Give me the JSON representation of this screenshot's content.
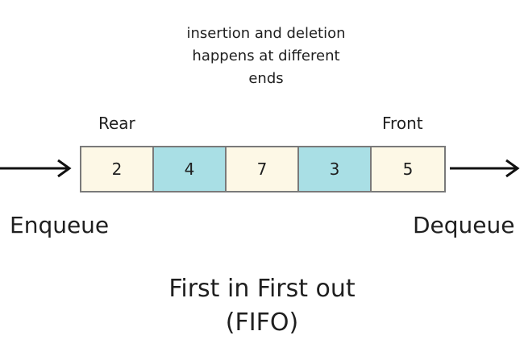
{
  "note": "insertion and deletion\nhappens at different\nends",
  "labels": {
    "rear": "Rear",
    "front": "Front",
    "enqueue": "Enqueue",
    "dequeue": "Dequeue"
  },
  "queue": {
    "cells": [
      {
        "value": "2",
        "color": "#fdf8e6"
      },
      {
        "value": "4",
        "color": "#a9dfe5"
      },
      {
        "value": "7",
        "color": "#fdf8e6"
      },
      {
        "value": "3",
        "color": "#a9dfe5"
      },
      {
        "value": "5",
        "color": "#fdf8e6"
      }
    ]
  },
  "caption": {
    "line1": "First in First out",
    "line2": "(FIFO)"
  },
  "icons": {
    "enqueue_arrow": "arrow-right-icon",
    "dequeue_arrow": "arrow-right-icon"
  }
}
